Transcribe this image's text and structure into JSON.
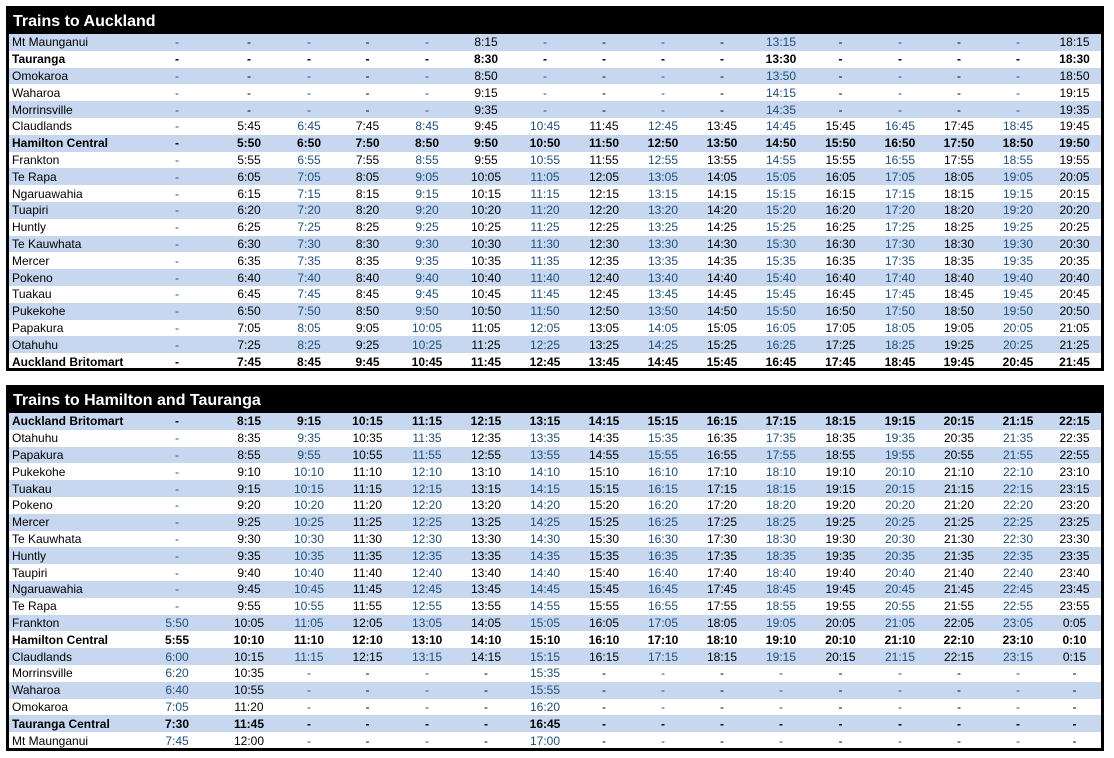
{
  "timetables": [
    {
      "title": "Trains to Auckland",
      "rows": [
        {
          "station": "Mt Maunganui",
          "bold": false,
          "times": [
            "-",
            "-",
            "-",
            "-",
            "-",
            "8:15",
            "-",
            "-",
            "-",
            "-",
            "13:15",
            "-",
            "-",
            "-",
            "-",
            "18:15"
          ]
        },
        {
          "station": "Tauranga",
          "bold": true,
          "times": [
            "-",
            "-",
            "-",
            "-",
            "-",
            "8:30",
            "-",
            "-",
            "-",
            "-",
            "13:30",
            "-",
            "-",
            "-",
            "-",
            "18:30"
          ]
        },
        {
          "station": "Omokaroa",
          "bold": false,
          "times": [
            "-",
            "-",
            "-",
            "-",
            "-",
            "8:50",
            "-",
            "-",
            "-",
            "-",
            "13:50",
            "-",
            "-",
            "-",
            "-",
            "18:50"
          ]
        },
        {
          "station": "Waharoa",
          "bold": false,
          "times": [
            "-",
            "-",
            "-",
            "-",
            "-",
            "9:15",
            "-",
            "-",
            "-",
            "-",
            "14:15",
            "-",
            "-",
            "-",
            "-",
            "19:15"
          ]
        },
        {
          "station": "Morrinsville",
          "bold": false,
          "times": [
            "-",
            "-",
            "-",
            "-",
            "-",
            "9:35",
            "-",
            "-",
            "-",
            "-",
            "14:35",
            "-",
            "-",
            "-",
            "-",
            "19:35"
          ]
        },
        {
          "station": "Claudlands",
          "bold": false,
          "times": [
            "-",
            "5:45",
            "6:45",
            "7:45",
            "8:45",
            "9:45",
            "10:45",
            "11:45",
            "12:45",
            "13:45",
            "14:45",
            "15:45",
            "16:45",
            "17:45",
            "18:45",
            "19:45"
          ]
        },
        {
          "station": "Hamilton Central",
          "bold": true,
          "times": [
            "-",
            "5:50",
            "6:50",
            "7:50",
            "8:50",
            "9:50",
            "10:50",
            "11:50",
            "12:50",
            "13:50",
            "14:50",
            "15:50",
            "16:50",
            "17:50",
            "18:50",
            "19:50"
          ]
        },
        {
          "station": "Frankton",
          "bold": false,
          "times": [
            "-",
            "5:55",
            "6:55",
            "7:55",
            "8:55",
            "9:55",
            "10:55",
            "11:55",
            "12:55",
            "13:55",
            "14:55",
            "15:55",
            "16:55",
            "17:55",
            "18:55",
            "19:55"
          ]
        },
        {
          "station": "Te Rapa",
          "bold": false,
          "times": [
            "-",
            "6:05",
            "7:05",
            "8:05",
            "9:05",
            "10:05",
            "11:05",
            "12:05",
            "13:05",
            "14:05",
            "15:05",
            "16:05",
            "17:05",
            "18:05",
            "19:05",
            "20:05"
          ]
        },
        {
          "station": "Ngaruawahia",
          "bold": false,
          "times": [
            "-",
            "6:15",
            "7:15",
            "8:15",
            "9:15",
            "10:15",
            "11:15",
            "12:15",
            "13:15",
            "14:15",
            "15:15",
            "16:15",
            "17:15",
            "18:15",
            "19:15",
            "20:15"
          ]
        },
        {
          "station": "Tuapiri",
          "bold": false,
          "times": [
            "-",
            "6:20",
            "7:20",
            "8:20",
            "9:20",
            "10:20",
            "11:20",
            "12:20",
            "13:20",
            "14:20",
            "15:20",
            "16:20",
            "17:20",
            "18:20",
            "19:20",
            "20:20"
          ]
        },
        {
          "station": "Huntly",
          "bold": false,
          "times": [
            "-",
            "6:25",
            "7:25",
            "8:25",
            "9:25",
            "10:25",
            "11:25",
            "12:25",
            "13:25",
            "14:25",
            "15:25",
            "16:25",
            "17:25",
            "18:25",
            "19:25",
            "20:25"
          ]
        },
        {
          "station": "Te Kauwhata",
          "bold": false,
          "times": [
            "-",
            "6:30",
            "7:30",
            "8:30",
            "9:30",
            "10:30",
            "11:30",
            "12:30",
            "13:30",
            "14:30",
            "15:30",
            "16:30",
            "17:30",
            "18:30",
            "19:30",
            "20:30"
          ]
        },
        {
          "station": "Mercer",
          "bold": false,
          "times": [
            "-",
            "6:35",
            "7:35",
            "8:35",
            "9:35",
            "10:35",
            "11:35",
            "12:35",
            "13:35",
            "14:35",
            "15:35",
            "16:35",
            "17:35",
            "18:35",
            "19:35",
            "20:35"
          ]
        },
        {
          "station": "Pokeno",
          "bold": false,
          "times": [
            "-",
            "6:40",
            "7:40",
            "8:40",
            "9:40",
            "10:40",
            "11:40",
            "12:40",
            "13:40",
            "14:40",
            "15:40",
            "16:40",
            "17:40",
            "18:40",
            "19:40",
            "20:40"
          ]
        },
        {
          "station": "Tuakau",
          "bold": false,
          "times": [
            "-",
            "6:45",
            "7:45",
            "8:45",
            "9:45",
            "10:45",
            "11:45",
            "12:45",
            "13:45",
            "14:45",
            "15:45",
            "16:45",
            "17:45",
            "18:45",
            "19:45",
            "20:45"
          ]
        },
        {
          "station": "Pukekohe",
          "bold": false,
          "times": [
            "-",
            "6:50",
            "7:50",
            "8:50",
            "9:50",
            "10:50",
            "11:50",
            "12:50",
            "13:50",
            "14:50",
            "15:50",
            "16:50",
            "17:50",
            "18:50",
            "19:50",
            "20:50"
          ]
        },
        {
          "station": "Papakura",
          "bold": false,
          "times": [
            "-",
            "7:05",
            "8:05",
            "9:05",
            "10:05",
            "11:05",
            "12:05",
            "13:05",
            "14:05",
            "15:05",
            "16:05",
            "17:05",
            "18:05",
            "19:05",
            "20:05",
            "21:05"
          ]
        },
        {
          "station": "Otahuhu",
          "bold": false,
          "times": [
            "-",
            "7:25",
            "8:25",
            "9:25",
            "10:25",
            "11:25",
            "12:25",
            "13:25",
            "14:25",
            "15:25",
            "16:25",
            "17:25",
            "18:25",
            "19:25",
            "20:25",
            "21:25"
          ]
        },
        {
          "station": "Auckland Britomart",
          "bold": true,
          "times": [
            "-",
            "7:45",
            "8:45",
            "9:45",
            "10:45",
            "11:45",
            "12:45",
            "13:45",
            "14:45",
            "15:45",
            "16:45",
            "17:45",
            "18:45",
            "19:45",
            "20:45",
            "21:45"
          ]
        }
      ]
    },
    {
      "title": "Trains to Hamilton and Tauranga",
      "rows": [
        {
          "station": "Auckland Britomart",
          "bold": true,
          "times": [
            "-",
            "8:15",
            "9:15",
            "10:15",
            "11:15",
            "12:15",
            "13:15",
            "14:15",
            "15:15",
            "16:15",
            "17:15",
            "18:15",
            "19:15",
            "20:15",
            "21:15",
            "22:15"
          ]
        },
        {
          "station": "Otahuhu",
          "bold": false,
          "times": [
            "-",
            "8:35",
            "9:35",
            "10:35",
            "11:35",
            "12:35",
            "13:35",
            "14:35",
            "15:35",
            "16:35",
            "17:35",
            "18:35",
            "19:35",
            "20:35",
            "21:35",
            "22:35"
          ]
        },
        {
          "station": "Papakura",
          "bold": false,
          "times": [
            "-",
            "8:55",
            "9:55",
            "10:55",
            "11:55",
            "12:55",
            "13:55",
            "14:55",
            "15:55",
            "16:55",
            "17:55",
            "18:55",
            "19:55",
            "20:55",
            "21:55",
            "22:55"
          ]
        },
        {
          "station": "Pukekohe",
          "bold": false,
          "times": [
            "-",
            "9:10",
            "10:10",
            "11:10",
            "12:10",
            "13:10",
            "14:10",
            "15:10",
            "16:10",
            "17:10",
            "18:10",
            "19:10",
            "20:10",
            "21:10",
            "22:10",
            "23:10"
          ]
        },
        {
          "station": "Tuakau",
          "bold": false,
          "times": [
            "-",
            "9:15",
            "10:15",
            "11:15",
            "12:15",
            "13:15",
            "14:15",
            "15:15",
            "16:15",
            "17:15",
            "18:15",
            "19:15",
            "20:15",
            "21:15",
            "22:15",
            "23:15"
          ]
        },
        {
          "station": "Pokeno",
          "bold": false,
          "times": [
            "-",
            "9:20",
            "10:20",
            "11:20",
            "12:20",
            "13:20",
            "14:20",
            "15:20",
            "16:20",
            "17:20",
            "18:20",
            "19:20",
            "20:20",
            "21:20",
            "22:20",
            "23:20"
          ]
        },
        {
          "station": "Mercer",
          "bold": false,
          "times": [
            "-",
            "9:25",
            "10:25",
            "11:25",
            "12:25",
            "13:25",
            "14:25",
            "15:25",
            "16:25",
            "17:25",
            "18:25",
            "19:25",
            "20:25",
            "21:25",
            "22:25",
            "23:25"
          ]
        },
        {
          "station": "Te Kauwhata",
          "bold": false,
          "times": [
            "-",
            "9:30",
            "10:30",
            "11:30",
            "12:30",
            "13:30",
            "14:30",
            "15:30",
            "16:30",
            "17:30",
            "18:30",
            "19:30",
            "20:30",
            "21:30",
            "22:30",
            "23:30"
          ]
        },
        {
          "station": "Huntly",
          "bold": false,
          "times": [
            "-",
            "9:35",
            "10:35",
            "11:35",
            "12:35",
            "13:35",
            "14:35",
            "15:35",
            "16:35",
            "17:35",
            "18:35",
            "19:35",
            "20:35",
            "21:35",
            "22:35",
            "23:35"
          ]
        },
        {
          "station": "Taupiri",
          "bold": false,
          "times": [
            "-",
            "9:40",
            "10:40",
            "11:40",
            "12:40",
            "13:40",
            "14:40",
            "15:40",
            "16:40",
            "17:40",
            "18:40",
            "19:40",
            "20:40",
            "21:40",
            "22:40",
            "23:40"
          ]
        },
        {
          "station": "Ngaruawahia",
          "bold": false,
          "times": [
            "-",
            "9:45",
            "10:45",
            "11:45",
            "12:45",
            "13:45",
            "14:45",
            "15:45",
            "16:45",
            "17:45",
            "18:45",
            "19:45",
            "20:45",
            "21:45",
            "22:45",
            "23:45"
          ]
        },
        {
          "station": "Te Rapa",
          "bold": false,
          "times": [
            "-",
            "9:55",
            "10:55",
            "11:55",
            "12:55",
            "13:55",
            "14:55",
            "15:55",
            "16:55",
            "17:55",
            "18:55",
            "19:55",
            "20:55",
            "21:55",
            "22:55",
            "23:55"
          ]
        },
        {
          "station": "Frankton",
          "bold": false,
          "times": [
            "5:50",
            "10:05",
            "11:05",
            "12:05",
            "13:05",
            "14:05",
            "15:05",
            "16:05",
            "17:05",
            "18:05",
            "19:05",
            "20:05",
            "21:05",
            "22:05",
            "23:05",
            "0:05"
          ]
        },
        {
          "station": "Hamilton Central",
          "bold": true,
          "times": [
            "5:55",
            "10:10",
            "11:10",
            "12:10",
            "13:10",
            "14:10",
            "15:10",
            "16:10",
            "17:10",
            "18:10",
            "19:10",
            "20:10",
            "21:10",
            "22:10",
            "23:10",
            "0:10"
          ]
        },
        {
          "station": "Claudlands",
          "bold": false,
          "times": [
            "6:00",
            "10:15",
            "11:15",
            "12:15",
            "13:15",
            "14:15",
            "15:15",
            "16:15",
            "17:15",
            "18:15",
            "19:15",
            "20:15",
            "21:15",
            "22:15",
            "23:15",
            "0:15"
          ]
        },
        {
          "station": "Morrinsville",
          "bold": false,
          "times": [
            "6:20",
            "10:35",
            "-",
            "-",
            "-",
            "-",
            "15:35",
            "-",
            "-",
            "-",
            "-",
            "-",
            "-",
            "-",
            "-",
            "-"
          ]
        },
        {
          "station": "Waharoa",
          "bold": false,
          "times": [
            "6:40",
            "10:55",
            "-",
            "-",
            "-",
            "-",
            "15:55",
            "-",
            "-",
            "-",
            "-",
            "-",
            "-",
            "-",
            "-",
            "-"
          ]
        },
        {
          "station": "Omokaroa",
          "bold": false,
          "times": [
            "7:05",
            "11:20",
            "-",
            "-",
            "-",
            "-",
            "16:20",
            "-",
            "-",
            "-",
            "-",
            "-",
            "-",
            "-",
            "-",
            "-"
          ]
        },
        {
          "station": "Tauranga Central",
          "bold": true,
          "times": [
            "7:30",
            "11:45",
            "-",
            "-",
            "-",
            "-",
            "16:45",
            "-",
            "-",
            "-",
            "-",
            "-",
            "-",
            "-",
            "-",
            "-"
          ]
        },
        {
          "station": "Mt Maunganui",
          "bold": false,
          "times": [
            "7:45",
            "12:00",
            "-",
            "-",
            "-",
            "-",
            "17:00",
            "-",
            "-",
            "-",
            "-",
            "-",
            "-",
            "-",
            "-",
            "-"
          ]
        }
      ]
    }
  ],
  "colors": {
    "header_bg": "#000000",
    "header_text": "#ffffff",
    "row_shade": "#c6d7ef",
    "alt_column_text": "#1f4e79"
  }
}
